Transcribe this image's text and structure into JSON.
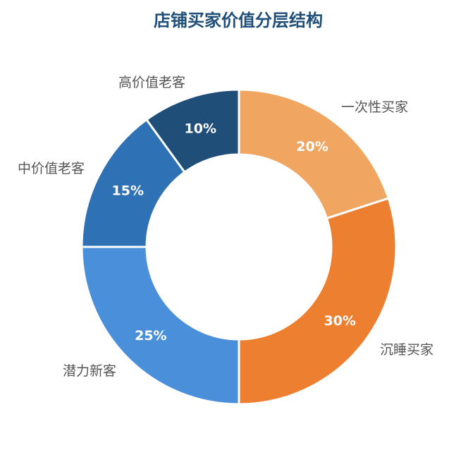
{
  "chart_data": {
    "type": "pie",
    "variant": "donut",
    "title": "店铺买家价值分层结构",
    "categories": [
      "一次性买家",
      "沉睡买家",
      "潜力新客",
      "中价值老客",
      "高价值老客"
    ],
    "values": [
      20,
      30,
      25,
      15,
      10
    ],
    "percent_labels": [
      "20%",
      "30%",
      "25%",
      "15%",
      "10%"
    ],
    "colors": [
      "#f0a660",
      "#ed7f30",
      "#4a8fd9",
      "#2e72b5",
      "#1f4e79"
    ],
    "start_angle": "12 o'clock",
    "direction": "clockwise",
    "legend": "none",
    "slice_labels": "outside"
  }
}
